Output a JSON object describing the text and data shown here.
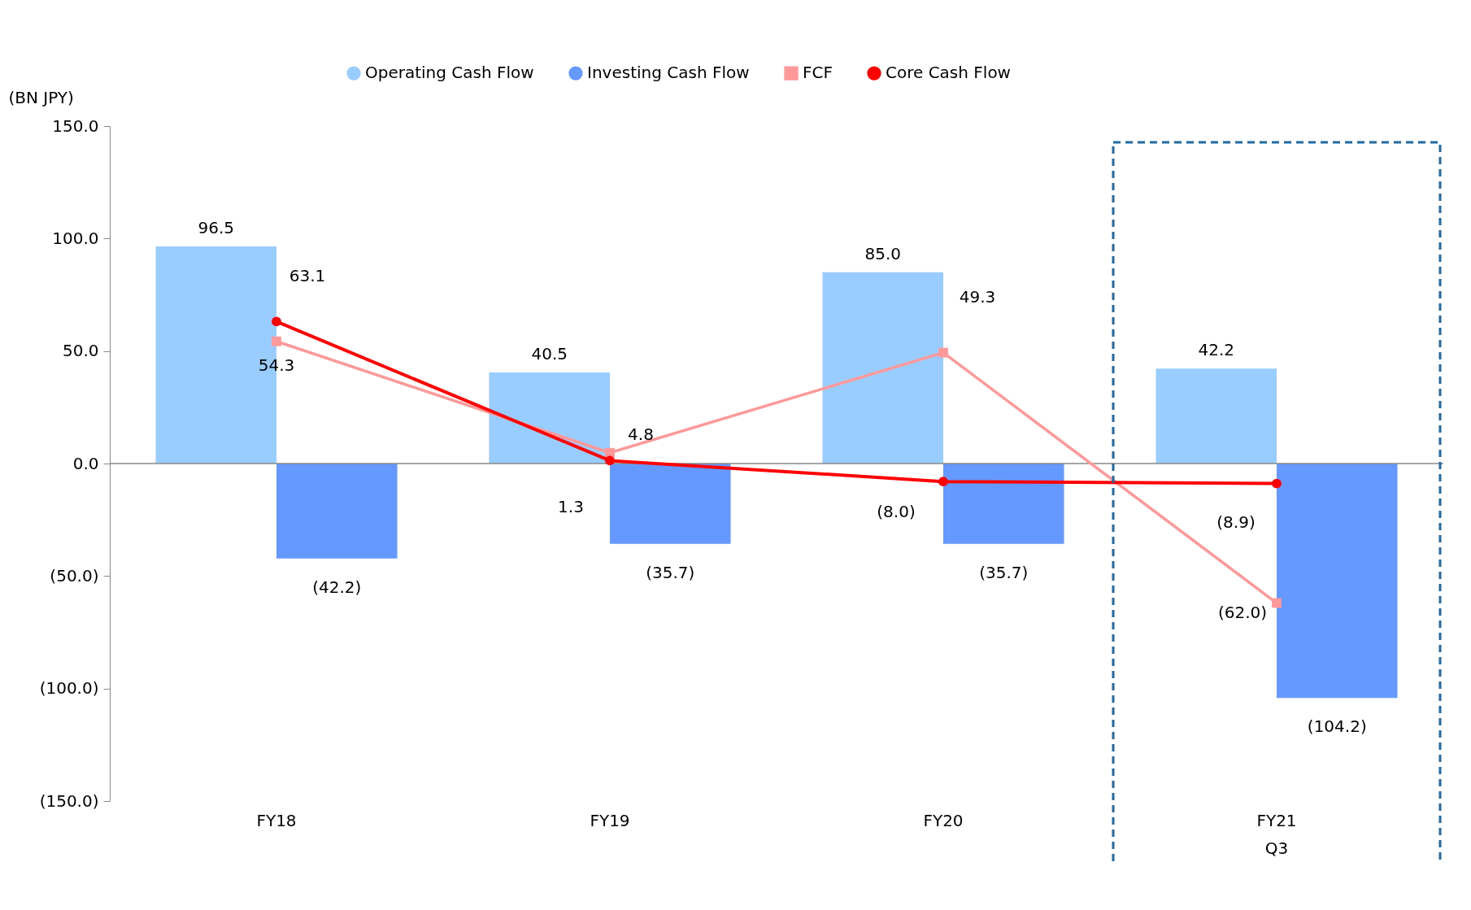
{
  "chart_data": {
    "type": "bar",
    "ylabel": "(BN JPY)",
    "categories": [
      "FY18",
      "FY19",
      "FY20",
      "FY21\nQ3"
    ],
    "series": [
      {
        "name": "Operating Cash Flow",
        "color": "#99ccff",
        "values": [
          96.5,
          40.5,
          85.0,
          42.2
        ],
        "value_labels": [
          "96.5",
          "40.5",
          "85.0",
          "42.2"
        ]
      },
      {
        "name": "Investing Cash Flow",
        "color": "#6699ff",
        "values": [
          -42.2,
          -35.7,
          -35.7,
          -104.2
        ],
        "value_labels": [
          "(42.2)",
          "(35.7)",
          "(35.7)",
          "(104.2)"
        ]
      },
      {
        "name": "FCF",
        "type": "line",
        "color": "#ff9999",
        "marker": "square",
        "values": [
          54.3,
          4.8,
          49.3,
          -62.0
        ],
        "value_labels": [
          "54.3",
          "4.8",
          "49.3",
          "(62.0)"
        ]
      },
      {
        "name": "Core Cash Flow",
        "type": "line",
        "color": "#ff0000",
        "marker": "circle",
        "values": [
          63.1,
          1.3,
          -8.0,
          -8.9
        ],
        "value_labels": [
          "63.1",
          "1.3",
          "(8.0)",
          "(8.9)"
        ]
      }
    ],
    "ylim": [
      -150,
      150
    ],
    "yticks": [
      {
        "value": -150,
        "label": "(150.0)"
      },
      {
        "value": -100,
        "label": "(100.0)"
      },
      {
        "value": -50,
        "label": "(50.0)"
      },
      {
        "value": 0,
        "label": "0.0"
      },
      {
        "value": 50,
        "label": "50.0"
      },
      {
        "value": 100,
        "label": "100.0"
      },
      {
        "value": 150,
        "label": "150.0"
      }
    ],
    "legend": "top"
  }
}
